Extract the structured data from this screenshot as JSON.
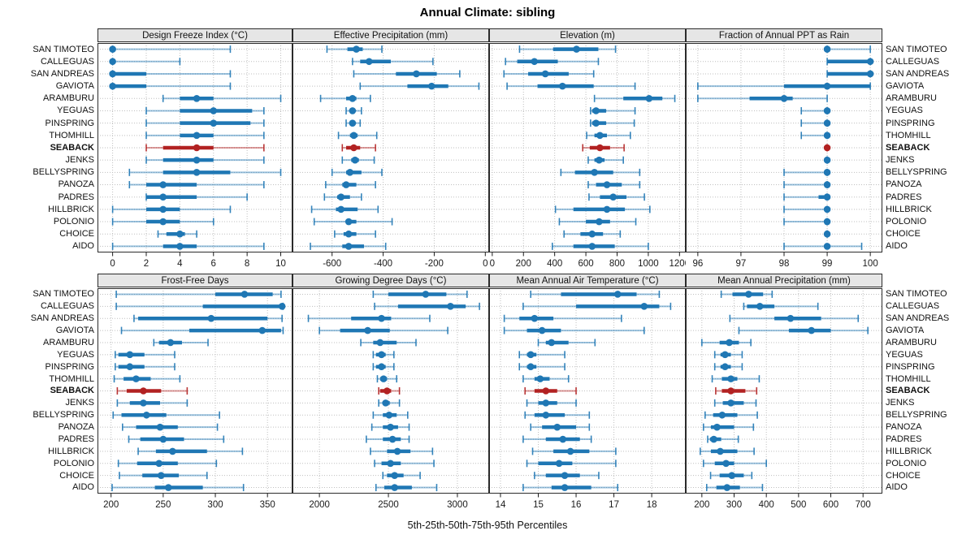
{
  "title": "Annual Climate: sibling",
  "caption": "5th-25th-50th-75th-95th Percentiles",
  "colors": {
    "series_blue": "#1f77b4",
    "highlight_red": "#b22222",
    "strip_bg": "#e6e6e6",
    "panel_border": "#2b2b2b",
    "grid": "#bfbfbf",
    "tick_text": "#1a1a1a"
  },
  "sites": [
    "SAN TIMOTEO",
    "CALLEGUAS",
    "SAN ANDREAS",
    "GAVIOTA",
    "ARAMBURU",
    "YEGUAS",
    "PINSPRING",
    "THOMHILL",
    "SEABACK",
    "JENKS",
    "BELLYSPRING",
    "PANOZA",
    "PADRES",
    "HILLBRICK",
    "POLONIO",
    "CHOICE",
    "AIDO"
  ],
  "highlight_site": "SEABACK",
  "chart_data": {
    "type": "dotplot-percentile-intervals",
    "percentiles": [
      "5th",
      "25th",
      "50th",
      "75th",
      "95th"
    ],
    "layout": "2 rows x 4 columns, shared site axis, axis below each panel row",
    "panels": [
      {
        "title": "Design Freeze Index (°C)",
        "row": 0,
        "col": 0,
        "xlim": [
          -0.9,
          10.7
        ],
        "ticks": [
          0,
          2,
          4,
          6,
          8,
          10
        ],
        "values": [
          [
            0,
            0,
            0,
            0,
            7
          ],
          [
            0,
            0,
            0,
            0,
            4
          ],
          [
            0,
            0,
            0,
            2,
            7
          ],
          [
            0,
            0,
            0,
            2,
            7
          ],
          [
            3,
            4,
            5,
            6,
            10
          ],
          [
            2,
            4,
            6,
            8.3,
            9
          ],
          [
            2,
            4,
            6,
            8.2,
            9
          ],
          [
            2,
            4,
            5,
            6,
            9
          ],
          [
            2,
            3,
            5,
            6,
            9
          ],
          [
            2,
            3,
            5,
            6,
            9
          ],
          [
            1,
            3,
            5,
            7,
            10
          ],
          [
            1,
            2,
            3,
            5,
            9
          ],
          [
            2,
            2,
            3,
            5,
            8
          ],
          [
            0,
            2,
            3,
            4,
            7
          ],
          [
            0,
            2,
            3,
            4,
            6
          ],
          [
            2.7,
            3.2,
            4,
            4.3,
            5
          ],
          [
            0,
            3,
            4,
            5,
            9
          ]
        ]
      },
      {
        "title": "Effective Precipitation (mm)",
        "row": 0,
        "col": 1,
        "xlim": [
          -755,
          15
        ],
        "ticks": [
          -600,
          -400,
          -200,
          0
        ],
        "values": [
          [
            -620,
            -540,
            -505,
            -480,
            -405
          ],
          [
            -520,
            -490,
            -455,
            -370,
            -205
          ],
          [
            -515,
            -350,
            -270,
            -190,
            -100
          ],
          [
            -490,
            -305,
            -210,
            -145,
            -25
          ],
          [
            -645,
            -545,
            -520,
            -505,
            -450
          ],
          [
            -545,
            -530,
            -520,
            -510,
            -485
          ],
          [
            -545,
            -530,
            -520,
            -510,
            -490
          ],
          [
            -575,
            -530,
            -515,
            -500,
            -425
          ],
          [
            -560,
            -545,
            -515,
            -490,
            -430
          ],
          [
            -560,
            -525,
            -510,
            -495,
            -435
          ],
          [
            -600,
            -545,
            -530,
            -485,
            -405
          ],
          [
            -625,
            -560,
            -545,
            -505,
            -430
          ],
          [
            -630,
            -580,
            -565,
            -530,
            -485
          ],
          [
            -680,
            -585,
            -565,
            -500,
            -420
          ],
          [
            -670,
            -545,
            -535,
            -505,
            -365
          ],
          [
            -590,
            -555,
            -535,
            -505,
            -430
          ],
          [
            -685,
            -560,
            -535,
            -475,
            -390
          ]
        ]
      },
      {
        "title": "Elevation (m)",
        "row": 0,
        "col": 2,
        "xlim": [
          -20,
          1240
        ],
        "ticks": [
          0,
          200,
          400,
          600,
          800,
          1000,
          1200
        ],
        "values": [
          [
            175,
            390,
            540,
            680,
            790
          ],
          [
            85,
            160,
            270,
            420,
            680
          ],
          [
            75,
            230,
            340,
            490,
            650
          ],
          [
            95,
            290,
            450,
            650,
            915
          ],
          [
            655,
            840,
            1005,
            1090,
            1170
          ],
          [
            630,
            640,
            665,
            730,
            915
          ],
          [
            630,
            640,
            665,
            730,
            910
          ],
          [
            605,
            655,
            690,
            735,
            885
          ],
          [
            580,
            625,
            690,
            755,
            845
          ],
          [
            615,
            655,
            685,
            720,
            840
          ],
          [
            440,
            530,
            655,
            775,
            945
          ],
          [
            615,
            665,
            735,
            830,
            945
          ],
          [
            620,
            690,
            775,
            860,
            975
          ],
          [
            405,
            520,
            735,
            850,
            1010
          ],
          [
            430,
            600,
            685,
            755,
            920
          ],
          [
            460,
            565,
            640,
            710,
            820
          ],
          [
            385,
            520,
            640,
            785,
            1000
          ]
        ]
      },
      {
        "title": "Fraction of Annual PPT as Rain",
        "row": 0,
        "col": 3,
        "xlim": [
          95.72,
          100.28
        ],
        "ticks": [
          96,
          97,
          98,
          99,
          100
        ],
        "values": [
          [
            99,
            99,
            99,
            99,
            100
          ],
          [
            99,
            99,
            100,
            100,
            100
          ],
          [
            99,
            99,
            100,
            100,
            100
          ],
          [
            96,
            98,
            99,
            100,
            100
          ],
          [
            96,
            97.2,
            98,
            98.2,
            99
          ],
          [
            98.4,
            99,
            99,
            99,
            99
          ],
          [
            98.4,
            99,
            99,
            99,
            99
          ],
          [
            98.4,
            99,
            99,
            99,
            99
          ],
          [
            99,
            99,
            99,
            99,
            99
          ],
          [
            99,
            99,
            99,
            99,
            99
          ],
          [
            98,
            99,
            99,
            99,
            99
          ],
          [
            98,
            99,
            99,
            99,
            99
          ],
          [
            98,
            98.8,
            99,
            99,
            99
          ],
          [
            98,
            99,
            99,
            99,
            99
          ],
          [
            98,
            99,
            99,
            99,
            99
          ],
          [
            99,
            99,
            99,
            99,
            99
          ],
          [
            98,
            99,
            99,
            99,
            99.8
          ]
        ]
      },
      {
        "title": "Frost-Free Days",
        "row": 1,
        "col": 0,
        "xlim": [
          187,
          374
        ],
        "ticks": [
          200,
          250,
          300,
          350
        ],
        "values": [
          [
            205,
            300,
            328,
            355,
            363
          ],
          [
            205,
            288,
            364,
            365,
            365
          ],
          [
            222,
            226,
            296,
            350,
            364
          ],
          [
            210,
            275,
            345,
            363,
            365
          ],
          [
            241,
            246,
            257,
            268,
            293
          ],
          [
            204,
            207,
            218,
            232,
            261
          ],
          [
            204,
            207,
            218,
            232,
            261
          ],
          [
            203,
            212,
            224,
            238,
            266
          ],
          [
            206,
            215,
            231,
            248,
            273
          ],
          [
            206,
            218,
            231,
            247,
            273
          ],
          [
            202,
            210,
            234,
            253,
            304
          ],
          [
            211,
            224,
            247,
            264,
            302
          ],
          [
            217,
            228,
            250,
            270,
            308
          ],
          [
            226,
            243,
            259,
            292,
            326
          ],
          [
            207,
            225,
            246,
            264,
            301
          ],
          [
            208,
            230,
            248,
            265,
            292
          ],
          [
            201,
            242,
            255,
            288,
            327
          ]
        ]
      },
      {
        "title": "Growing Degree Days (°C)",
        "row": 1,
        "col": 1,
        "xlim": [
          1805,
          3230
        ],
        "ticks": [
          2000,
          2500,
          3000
        ],
        "values": [
          [
            2390,
            2500,
            2770,
            2920,
            3070
          ],
          [
            2400,
            2570,
            2950,
            3060,
            3160
          ],
          [
            1920,
            2230,
            2450,
            2520,
            2800
          ],
          [
            2000,
            2150,
            2350,
            2510,
            2930
          ],
          [
            2300,
            2390,
            2440,
            2560,
            2700
          ],
          [
            2390,
            2410,
            2450,
            2480,
            2540
          ],
          [
            2390,
            2410,
            2450,
            2480,
            2540
          ],
          [
            2420,
            2440,
            2465,
            2490,
            2560
          ],
          [
            2430,
            2440,
            2490,
            2520,
            2580
          ],
          [
            2430,
            2460,
            2480,
            2510,
            2580
          ],
          [
            2390,
            2460,
            2505,
            2560,
            2640
          ],
          [
            2380,
            2460,
            2515,
            2570,
            2650
          ],
          [
            2340,
            2460,
            2530,
            2590,
            2650
          ],
          [
            2370,
            2490,
            2565,
            2660,
            2820
          ],
          [
            2400,
            2450,
            2515,
            2590,
            2830
          ],
          [
            2460,
            2490,
            2545,
            2610,
            2730
          ],
          [
            2410,
            2470,
            2545,
            2670,
            2850
          ]
        ]
      },
      {
        "title": "Mean Annual Air Temperature (°C)",
        "row": 1,
        "col": 2,
        "xlim": [
          13.7,
          18.9
        ],
        "ticks": [
          14,
          15,
          16,
          17,
          18
        ],
        "values": [
          [
            14.8,
            15.6,
            17.1,
            17.6,
            18.2
          ],
          [
            14.6,
            16.0,
            17.8,
            18.2,
            18.5
          ],
          [
            14.1,
            14.5,
            14.9,
            15.4,
            17.2
          ],
          [
            14.1,
            14.7,
            15.1,
            15.6,
            17.8
          ],
          [
            15.0,
            15.2,
            15.35,
            15.8,
            16.5
          ],
          [
            14.5,
            14.7,
            14.8,
            14.95,
            15.7
          ],
          [
            14.5,
            14.7,
            14.8,
            14.95,
            15.7
          ],
          [
            14.6,
            14.9,
            15.05,
            15.3,
            15.8
          ],
          [
            14.65,
            14.9,
            15.2,
            15.5,
            16.0
          ],
          [
            14.7,
            15.0,
            15.2,
            15.5,
            16.0
          ],
          [
            14.65,
            14.9,
            15.2,
            15.7,
            16.35
          ],
          [
            14.8,
            15.1,
            15.5,
            16.0,
            16.35
          ],
          [
            14.6,
            15.2,
            15.65,
            16.1,
            16.4
          ],
          [
            14.85,
            15.4,
            15.85,
            16.35,
            17.05
          ],
          [
            14.7,
            15.0,
            15.55,
            15.9,
            17.05
          ],
          [
            14.9,
            15.2,
            15.7,
            16.1,
            16.6
          ],
          [
            14.6,
            15.35,
            15.7,
            16.4,
            17.1
          ]
        ]
      },
      {
        "title": "Mean Annual Precipitation (mm)",
        "row": 1,
        "col": 3,
        "xlim": [
          150,
          760
        ],
        "ticks": [
          200,
          300,
          400,
          500,
          600,
          700
        ],
        "values": [
          [
            260,
            295,
            345,
            390,
            418
          ],
          [
            330,
            340,
            380,
            425,
            560
          ],
          [
            287,
            425,
            475,
            570,
            685
          ],
          [
            315,
            470,
            540,
            600,
            715
          ],
          [
            200,
            255,
            285,
            315,
            352
          ],
          [
            240,
            258,
            272,
            290,
            325
          ],
          [
            240,
            258,
            272,
            290,
            325
          ],
          [
            232,
            262,
            290,
            310,
            378
          ],
          [
            243,
            262,
            290,
            335,
            370
          ],
          [
            240,
            265,
            290,
            330,
            368
          ],
          [
            210,
            235,
            263,
            310,
            372
          ],
          [
            205,
            228,
            247,
            300,
            360
          ],
          [
            218,
            225,
            237,
            260,
            313
          ],
          [
            195,
            228,
            257,
            310,
            362
          ],
          [
            205,
            240,
            275,
            300,
            400
          ],
          [
            227,
            255,
            293,
            330,
            355
          ],
          [
            215,
            245,
            278,
            318,
            388
          ]
        ]
      }
    ]
  }
}
